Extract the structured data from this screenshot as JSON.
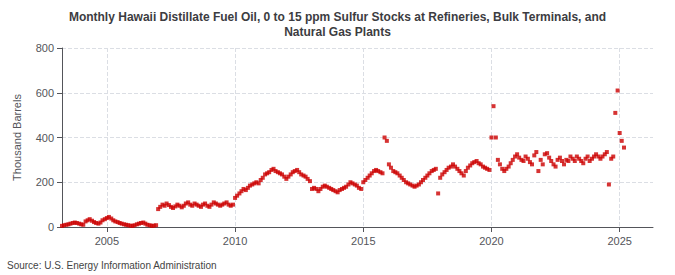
{
  "chart_data": {
    "type": "scatter",
    "title": "Monthly Hawaii Distillate Fuel Oil, 0 to 15 ppm Sulfur Stocks at Refineries, Bulk Terminals, and\nNatural Gas Plants",
    "ylabel": "Thousand Barrels",
    "source": "Source: U.S. Energy Information Administration",
    "color": "#cc0000",
    "marker": "square",
    "grid": true,
    "xlim": [
      2003.25,
      2026.3
    ],
    "xticks": [
      2005,
      2010,
      2015,
      2020,
      2025
    ],
    "ylim": [
      0,
      800
    ],
    "yticks": [
      0,
      200,
      400,
      600,
      800
    ],
    "x": [
      2003.25,
      2003.33,
      2003.42,
      2003.5,
      2003.58,
      2003.67,
      2003.75,
      2003.83,
      2003.92,
      2004.0,
      2004.08,
      2004.17,
      2004.25,
      2004.33,
      2004.42,
      2004.5,
      2004.58,
      2004.67,
      2004.75,
      2004.83,
      2004.92,
      2005.0,
      2005.08,
      2005.17,
      2005.25,
      2005.33,
      2005.42,
      2005.5,
      2005.58,
      2005.67,
      2005.75,
      2005.83,
      2005.92,
      2006.0,
      2006.08,
      2006.17,
      2006.25,
      2006.33,
      2006.42,
      2006.5,
      2006.58,
      2006.67,
      2006.75,
      2006.83,
      2006.92,
      2007.0,
      2007.08,
      2007.17,
      2007.25,
      2007.33,
      2007.42,
      2007.5,
      2007.58,
      2007.67,
      2007.75,
      2007.83,
      2007.92,
      2008.0,
      2008.08,
      2008.17,
      2008.25,
      2008.33,
      2008.42,
      2008.5,
      2008.58,
      2008.67,
      2008.75,
      2008.83,
      2008.92,
      2009.0,
      2009.08,
      2009.17,
      2009.25,
      2009.33,
      2009.42,
      2009.5,
      2009.58,
      2009.67,
      2009.75,
      2009.83,
      2009.92,
      2010.0,
      2010.08,
      2010.17,
      2010.25,
      2010.33,
      2010.42,
      2010.5,
      2010.58,
      2010.67,
      2010.75,
      2010.83,
      2010.92,
      2011.0,
      2011.08,
      2011.17,
      2011.25,
      2011.33,
      2011.42,
      2011.5,
      2011.58,
      2011.67,
      2011.75,
      2011.83,
      2011.92,
      2012.0,
      2012.08,
      2012.17,
      2012.25,
      2012.33,
      2012.42,
      2012.5,
      2012.58,
      2012.67,
      2012.75,
      2012.83,
      2012.92,
      2013.0,
      2013.08,
      2013.17,
      2013.25,
      2013.33,
      2013.42,
      2013.5,
      2013.58,
      2013.67,
      2013.75,
      2013.83,
      2013.92,
      2014.0,
      2014.08,
      2014.17,
      2014.25,
      2014.33,
      2014.42,
      2014.5,
      2014.58,
      2014.67,
      2014.75,
      2014.83,
      2014.92,
      2015.0,
      2015.08,
      2015.17,
      2015.25,
      2015.33,
      2015.42,
      2015.5,
      2015.58,
      2015.67,
      2015.75,
      2015.83,
      2015.92,
      2016.0,
      2016.08,
      2016.17,
      2016.25,
      2016.33,
      2016.42,
      2016.5,
      2016.58,
      2016.67,
      2016.75,
      2016.83,
      2016.92,
      2017.0,
      2017.08,
      2017.17,
      2017.25,
      2017.33,
      2017.42,
      2017.5,
      2017.58,
      2017.67,
      2017.75,
      2017.83,
      2017.92,
      2018.0,
      2018.08,
      2018.17,
      2018.25,
      2018.33,
      2018.42,
      2018.5,
      2018.58,
      2018.67,
      2018.75,
      2018.83,
      2018.92,
      2019.0,
      2019.08,
      2019.17,
      2019.25,
      2019.33,
      2019.42,
      2019.5,
      2019.58,
      2019.67,
      2019.75,
      2019.83,
      2019.92,
      2020.0,
      2020.08,
      2020.17,
      2020.25,
      2020.33,
      2020.42,
      2020.5,
      2020.58,
      2020.67,
      2020.75,
      2020.83,
      2020.92,
      2021.0,
      2021.08,
      2021.17,
      2021.25,
      2021.33,
      2021.42,
      2021.5,
      2021.58,
      2021.67,
      2021.75,
      2021.83,
      2021.92,
      2022.0,
      2022.08,
      2022.17,
      2022.25,
      2022.33,
      2022.42,
      2022.5,
      2022.58,
      2022.67,
      2022.75,
      2022.83,
      2022.92,
      2023.0,
      2023.08,
      2023.17,
      2023.25,
      2023.33,
      2023.42,
      2023.5,
      2023.58,
      2023.67,
      2023.75,
      2023.83,
      2023.92,
      2024.0,
      2024.08,
      2024.17,
      2024.25,
      2024.33,
      2024.42,
      2024.5,
      2024.58,
      2024.67,
      2024.75,
      2024.83,
      2024.92,
      2025.0,
      2025.08,
      2025.17
    ],
    "values": [
      5,
      8,
      10,
      12,
      15,
      18,
      20,
      18,
      15,
      12,
      10,
      25,
      30,
      35,
      28,
      22,
      18,
      15,
      20,
      30,
      35,
      40,
      45,
      38,
      30,
      25,
      22,
      18,
      15,
      12,
      10,
      8,
      6,
      5,
      8,
      12,
      15,
      18,
      20,
      15,
      10,
      8,
      5,
      6,
      8,
      80,
      90,
      100,
      95,
      105,
      98,
      90,
      85,
      92,
      100,
      95,
      88,
      95,
      105,
      110,
      100,
      95,
      105,
      100,
      95,
      90,
      100,
      105,
      95,
      90,
      100,
      110,
      105,
      100,
      95,
      100,
      105,
      110,
      100,
      95,
      100,
      130,
      140,
      150,
      160,
      170,
      165,
      175,
      185,
      190,
      195,
      200,
      195,
      210,
      220,
      235,
      240,
      245,
      255,
      260,
      250,
      245,
      240,
      235,
      225,
      215,
      225,
      235,
      245,
      250,
      255,
      245,
      235,
      230,
      225,
      215,
      205,
      170,
      175,
      170,
      160,
      170,
      180,
      185,
      180,
      175,
      170,
      165,
      160,
      155,
      165,
      170,
      175,
      180,
      190,
      200,
      195,
      190,
      185,
      175,
      170,
      200,
      210,
      220,
      230,
      240,
      250,
      255,
      250,
      245,
      240,
      400,
      385,
      280,
      265,
      250,
      245,
      240,
      230,
      220,
      210,
      200,
      195,
      190,
      185,
      180,
      185,
      190,
      200,
      210,
      220,
      230,
      240,
      250,
      255,
      260,
      150,
      220,
      235,
      245,
      255,
      265,
      270,
      280,
      270,
      260,
      250,
      240,
      230,
      250,
      265,
      275,
      285,
      290,
      295,
      285,
      280,
      270,
      265,
      260,
      255,
      400,
      540,
      400,
      300,
      280,
      260,
      250,
      260,
      270,
      285,
      300,
      315,
      325,
      310,
      300,
      295,
      315,
      305,
      290,
      280,
      320,
      335,
      250,
      300,
      280,
      325,
      330,
      310,
      295,
      280,
      270,
      300,
      310,
      295,
      280,
      300,
      295,
      315,
      305,
      295,
      315,
      305,
      295,
      285,
      305,
      315,
      295,
      305,
      315,
      325,
      315,
      305,
      315,
      325,
      335,
      190,
      305,
      315,
      510,
      610,
      420,
      385,
      355
    ]
  }
}
